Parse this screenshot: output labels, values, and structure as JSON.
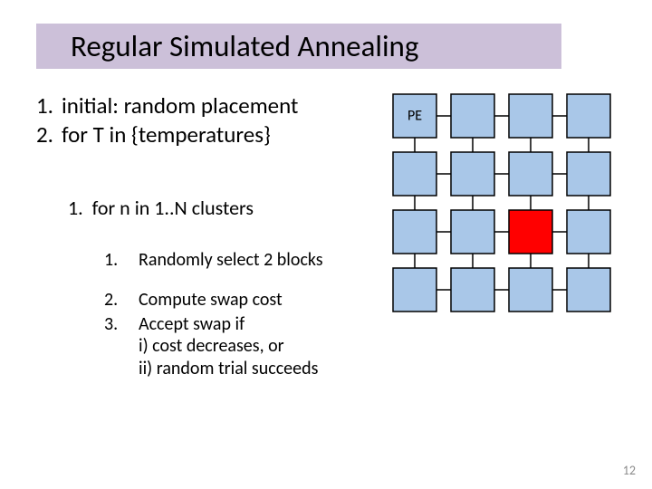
{
  "title": "Regular Simulated Annealing",
  "title_bar_color": "#ccc0d9",
  "main_items": [
    {
      "n": "1.",
      "t": "initial: random placement"
    },
    {
      "n": "2.",
      "t": "for T in {temperatures}"
    }
  ],
  "sub1": {
    "n": "1.",
    "t": "for n in 1..N clusters"
  },
  "sub2": [
    {
      "n": "1.",
      "t": "Randomly select 2 blocks"
    },
    {
      "n": "2.",
      "t": "Compute swap cost"
    },
    {
      "n": "3.",
      "t": "Accept swap if\ni) cost decreases, or\nii) random trial succeeds"
    }
  ],
  "grid": {
    "rows": 4,
    "cols": 4,
    "cell_size": 48,
    "gap": 16,
    "stroke": "#000000",
    "stroke_w": 1.5,
    "default_fill": "#a9c7e8",
    "highlight_fill": "#ff0000",
    "highlight_cell": {
      "r": 2,
      "c": 2
    },
    "pe_label": "PE",
    "pe_cell": {
      "r": 0,
      "c": 0
    },
    "pe_fontsize": 16,
    "connector_color": "#000000",
    "connector_w": 1.5
  },
  "page_number": "12",
  "fonts": {
    "title_pt": 33,
    "main_pt": 25,
    "sub1_pt": 22,
    "sub2_pt": 20,
    "pagenum_pt": 14
  }
}
